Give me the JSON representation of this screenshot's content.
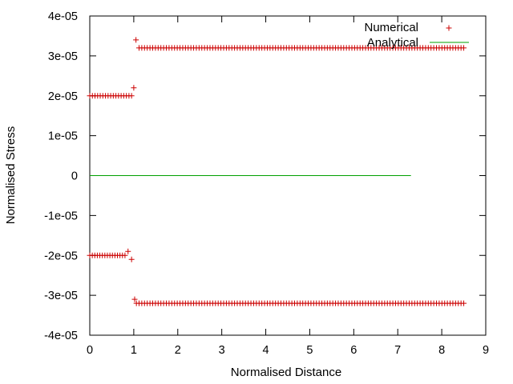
{
  "chart_data": {
    "type": "scatter",
    "title": "",
    "xlabel": "Normalised Distance",
    "ylabel": "Normalised Stress",
    "xlim": [
      0,
      9
    ],
    "ylim": [
      -4e-05,
      4e-05
    ],
    "xticks": [
      0,
      1,
      2,
      3,
      4,
      5,
      6,
      7,
      8,
      9
    ],
    "xtick_labels": [
      "0",
      "1",
      "2",
      "3",
      "4",
      "5",
      "6",
      "7",
      "8",
      "9"
    ],
    "yticks": [
      -4e-05,
      -3e-05,
      -2e-05,
      -1e-05,
      0,
      1e-05,
      2e-05,
      3e-05,
      4e-05
    ],
    "ytick_labels": [
      "-4e-05",
      "-3e-05",
      "-2e-05",
      "-1e-05",
      "0",
      "1e-05",
      "2e-05",
      "3e-05",
      "4e-05"
    ],
    "grid": false,
    "legend_position": "top-right",
    "series": [
      {
        "name": "Numerical",
        "style": "points",
        "marker": "+",
        "color": "#cc0000",
        "segments": [
          {
            "x_start": 0.0,
            "x_end": 0.95,
            "count": 17,
            "y": 2e-05
          },
          {
            "x_start": 1.12,
            "x_end": 8.5,
            "count": 120,
            "y": 3.2e-05
          },
          {
            "x_start": 0.0,
            "x_end": 0.8,
            "count": 15,
            "y": -2e-05
          },
          {
            "x_start": 1.12,
            "x_end": 8.5,
            "count": 120,
            "y": -3.2e-05
          }
        ],
        "points": [
          {
            "x": 1.0,
            "y": 2.2e-05
          },
          {
            "x": 1.05,
            "y": 3.4e-05
          },
          {
            "x": 0.87,
            "y": -1.9e-05
          },
          {
            "x": 0.95,
            "y": -2.1e-05
          },
          {
            "x": 1.02,
            "y": -3.1e-05
          },
          {
            "x": 1.06,
            "y": -3.2e-05
          }
        ]
      },
      {
        "name": "Analytical",
        "style": "line",
        "color": "#00a000",
        "x": [
          0,
          7.3
        ],
        "y": [
          0,
          0
        ]
      }
    ]
  }
}
